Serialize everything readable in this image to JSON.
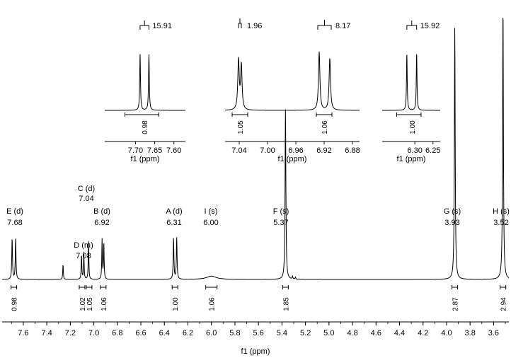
{
  "chart_data": {
    "type": "line",
    "xlabel": "f1 (ppm)",
    "x_reversed": true,
    "xlim": [
      3.47,
      7.78
    ],
    "ticks": [
      "7.6",
      "7.4",
      "7.2",
      "7.0",
      "6.8",
      "6.6",
      "6.4",
      "6.2",
      "6.0",
      "5.8",
      "5.6",
      "5.4",
      "5.2",
      "5.0",
      "4.8",
      "4.6",
      "4.4",
      "4.2",
      "4.0",
      "3.8",
      "3.6"
    ],
    "peaks": [
      {
        "label": "E (d)",
        "shift": "7.68",
        "x": 7.68
      },
      {
        "label": "D (m)",
        "shift": "7.08",
        "x": 7.08
      },
      {
        "label": "C (d)",
        "shift": "7.04",
        "x": 7.04
      },
      {
        "label": "B (d)",
        "shift": "6.92",
        "x": 6.92
      },
      {
        "label": "A (d)",
        "shift": "6.31",
        "x": 6.31
      },
      {
        "label": "I (s)",
        "shift": "6.00",
        "x": 6.0
      },
      {
        "label": "F (s)",
        "shift": "5.37",
        "x": 5.37
      },
      {
        "label": "G (s)",
        "shift": "3.93",
        "x": 3.93
      },
      {
        "label": "H (s)",
        "shift": "3.52",
        "x": 3.52
      }
    ],
    "integrals": [
      {
        "value": "0.98",
        "x": 7.68
      },
      {
        "value": "1.02",
        "x": 7.1
      },
      {
        "value": "1.05",
        "x": 7.04
      },
      {
        "value": "1.06",
        "x": 6.92
      },
      {
        "value": "1.00",
        "x": 6.31
      },
      {
        "value": "1.06",
        "x": 6.0
      },
      {
        "value": "1.85",
        "x": 5.37
      },
      {
        "value": "2.87",
        "x": 3.93
      },
      {
        "value": "2.94",
        "x": 3.52
      }
    ],
    "lines": [
      {
        "x": 7.695,
        "h": 0.15,
        "w": 0.0035
      },
      {
        "x": 7.665,
        "h": 0.15,
        "w": 0.0035
      },
      {
        "x": 7.262,
        "h": 0.055,
        "w": 0.003
      },
      {
        "x": 7.105,
        "h": 0.09,
        "w": 0.003
      },
      {
        "x": 7.085,
        "h": 0.1,
        "w": 0.003
      },
      {
        "x": 7.045,
        "h": 0.14,
        "w": 0.003
      },
      {
        "x": 6.93,
        "h": 0.145,
        "w": 0.003
      },
      {
        "x": 6.915,
        "h": 0.135,
        "w": 0.003
      },
      {
        "x": 6.322,
        "h": 0.15,
        "w": 0.0035
      },
      {
        "x": 6.295,
        "h": 0.15,
        "w": 0.0035
      },
      {
        "x": 6.0,
        "h": 0.012,
        "w": 0.05
      },
      {
        "x": 5.37,
        "h": 0.62,
        "w": 0.004
      },
      {
        "x": 5.31,
        "h": 0.01,
        "w": 0.003
      },
      {
        "x": 5.285,
        "h": 0.008,
        "w": 0.003
      },
      {
        "x": 3.93,
        "h": 0.92,
        "w": 0.004
      },
      {
        "x": 3.52,
        "h": 1.0,
        "w": 0.004
      }
    ],
    "insets": [
      {
        "xlabel": "f1 (ppm)",
        "xlim": [
          7.57,
          7.78
        ],
        "ticks": [
          "7.70",
          "7.65",
          "7.60"
        ],
        "coupling": "15.91",
        "integral": "0.98",
        "lines": [
          {
            "x": 7.688,
            "h": 0.88
          },
          {
            "x": 7.665,
            "h": 0.88
          }
        ]
      },
      {
        "xlabel": "f1 (ppm)",
        "xlim": [
          6.87,
          7.06
        ],
        "ticks": [
          "7.04",
          "7.00",
          "6.96",
          "6.92",
          "6.88"
        ],
        "couplings": [
          "1.96",
          "8.17"
        ],
        "integrals": [
          "1.05",
          "1.06"
        ],
        "lines": [
          {
            "x": 7.041,
            "h": 0.78
          },
          {
            "x": 7.037,
            "h": 0.7
          },
          {
            "x": 6.927,
            "h": 0.92
          },
          {
            "x": 6.912,
            "h": 0.82
          }
        ]
      },
      {
        "xlabel": "f1 (ppm)",
        "xlim": [
          6.23,
          6.39
        ],
        "ticks": [
          "6.30",
          "6.25"
        ],
        "coupling": "15.92",
        "integral": "1.00",
        "lines": [
          {
            "x": 6.322,
            "h": 0.88
          },
          {
            "x": 6.295,
            "h": 0.88
          }
        ]
      }
    ]
  }
}
